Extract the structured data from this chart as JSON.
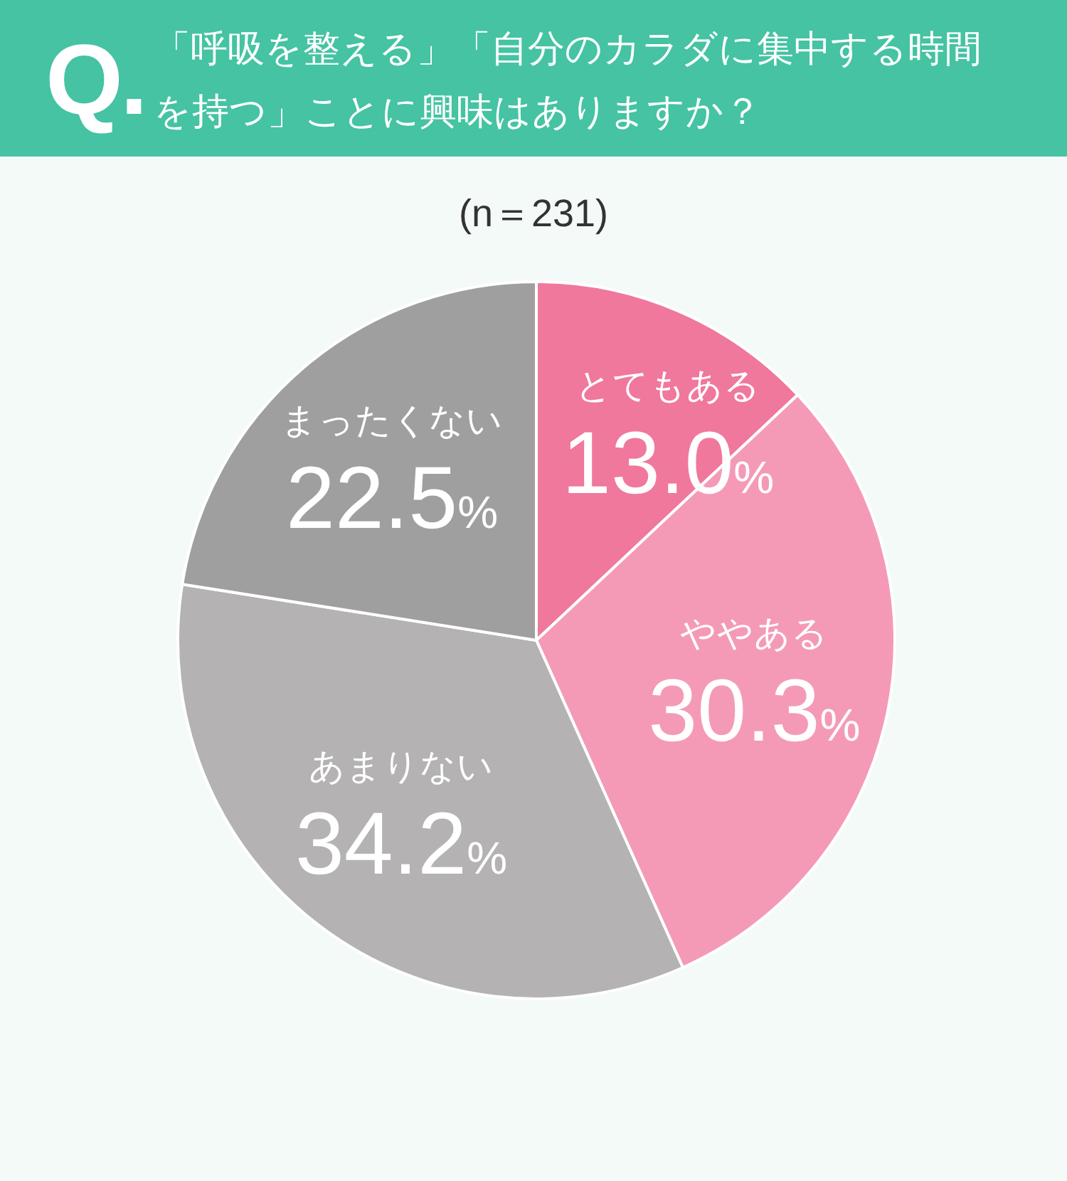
{
  "chart_data": {
    "type": "pie",
    "title": "「呼吸を整える」「自分のカラダに集中する時間を持つ」ことに興味はありますか？",
    "subtitle": "(n＝231)",
    "annotations": [
      "Q."
    ],
    "categories": [
      "とてもある",
      "ややある",
      "あまりない",
      "まったくない"
    ],
    "values": [
      13.0,
      30.3,
      34.2,
      22.5
    ],
    "value_labels": [
      "13.0%",
      "30.3%",
      "34.2%",
      "22.5%"
    ],
    "colors": [
      "#f0789c",
      "#f49ab7",
      "#b4b2b3",
      "#a09fa0"
    ]
  }
}
